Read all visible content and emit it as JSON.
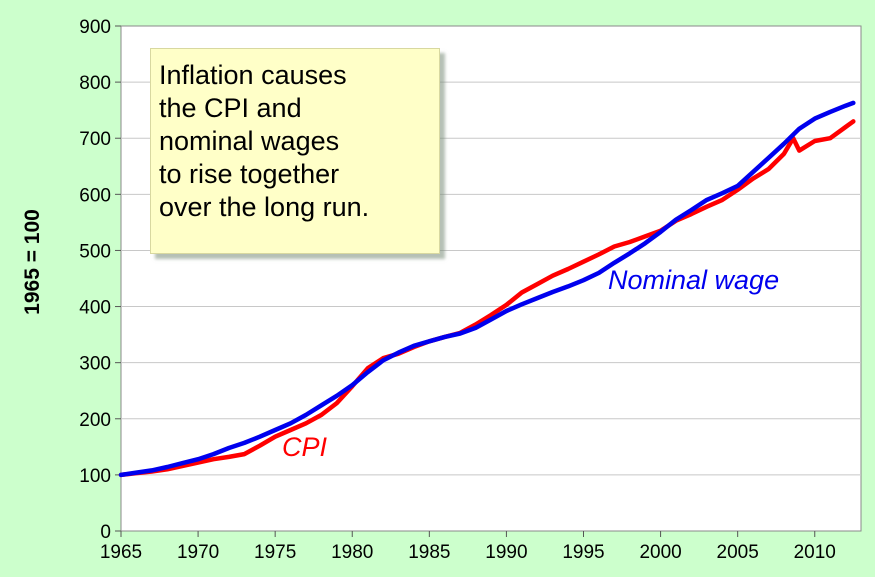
{
  "chart_data": {
    "type": "line",
    "title": "",
    "xlabel": "",
    "ylabel": "1965 = 100",
    "xlim": [
      1965,
      2013
    ],
    "ylim": [
      0,
      900
    ],
    "x_ticks": [
      1965,
      1970,
      1975,
      1980,
      1985,
      1990,
      1995,
      2000,
      2005,
      2010
    ],
    "y_ticks": [
      0,
      100,
      200,
      300,
      400,
      500,
      600,
      700,
      800,
      900
    ],
    "grid": "horizontal",
    "annotation": [
      "Inflation causes",
      "the CPI and",
      "nominal wages",
      "to rise together",
      "over the long run."
    ],
    "series": [
      {
        "name": "CPI",
        "color": "#ff0000",
        "x": [
          1965,
          1966,
          1967,
          1968,
          1969,
          1970,
          1971,
          1972,
          1973,
          1974,
          1975,
          1976,
          1977,
          1978,
          1979,
          1980,
          1981,
          1982,
          1983,
          1984,
          1985,
          1986,
          1987,
          1988,
          1989,
          1990,
          1991,
          1992,
          1993,
          1994,
          1995,
          1996,
          1997,
          1998,
          1999,
          2000,
          2001,
          2002,
          2003,
          2004,
          2005,
          2006,
          2007,
          2008,
          2008.6,
          2009,
          2010,
          2011,
          2012,
          2012.5
        ],
        "y": [
          100,
          103,
          106,
          110,
          116,
          122,
          128,
          132,
          137,
          152,
          168,
          180,
          192,
          207,
          228,
          258,
          290,
          308,
          316,
          328,
          338,
          346,
          353,
          368,
          385,
          403,
          425,
          440,
          455,
          467,
          480,
          493,
          507,
          515,
          525,
          535,
          553,
          565,
          578,
          590,
          608,
          628,
          645,
          672,
          700,
          678,
          695,
          700,
          720,
          730
        ]
      },
      {
        "name": "Nominal wage",
        "color": "#0000ee",
        "x": [
          1965,
          1966,
          1967,
          1968,
          1969,
          1970,
          1971,
          1972,
          1973,
          1974,
          1975,
          1976,
          1977,
          1978,
          1979,
          1980,
          1981,
          1982,
          1983,
          1984,
          1985,
          1986,
          1987,
          1988,
          1989,
          1990,
          1991,
          1992,
          1993,
          1994,
          1995,
          1996,
          1997,
          1998,
          1999,
          2000,
          2001,
          2002,
          2003,
          2004,
          2005,
          2006,
          2007,
          2008,
          2009,
          2010,
          2011,
          2012,
          2012.5
        ],
        "y": [
          100,
          104,
          108,
          114,
          121,
          128,
          137,
          148,
          157,
          168,
          180,
          192,
          207,
          224,
          241,
          260,
          283,
          304,
          318,
          330,
          338,
          346,
          352,
          362,
          377,
          392,
          404,
          415,
          426,
          436,
          447,
          460,
          478,
          495,
          513,
          533,
          555,
          572,
          590,
          602,
          615,
          640,
          665,
          690,
          717,
          735,
          747,
          758,
          763
        ]
      }
    ]
  }
}
